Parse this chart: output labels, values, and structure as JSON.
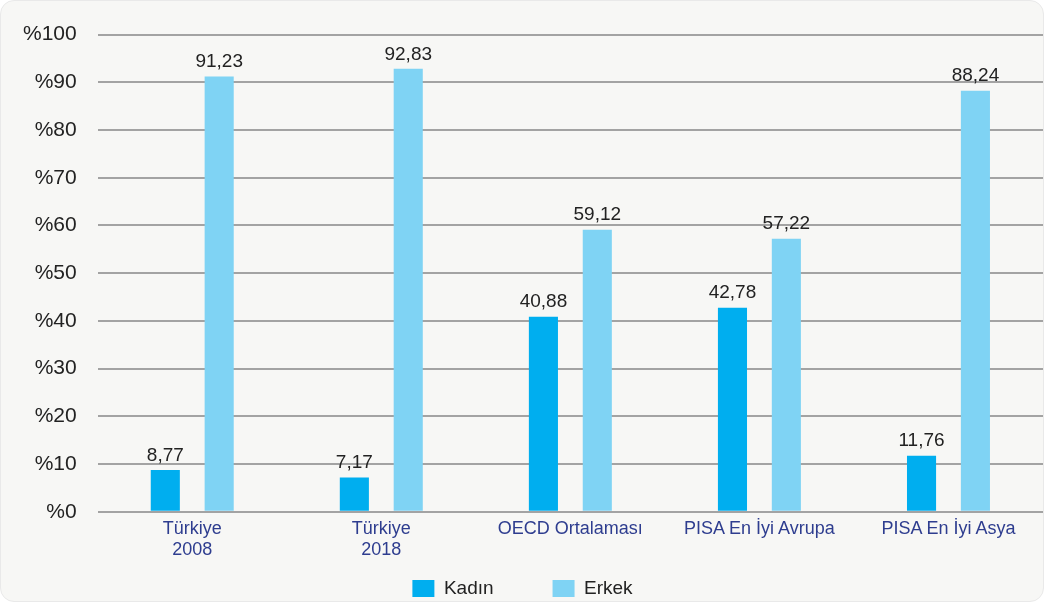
{
  "chart_data": {
    "type": "bar",
    "categories": [
      "Türkiye\n2008",
      "Türkiye\n2018",
      "OECD Ortalaması",
      "PISA En İyi Avrupa",
      "PISA En İyi Asya"
    ],
    "series": [
      {
        "name": "Kadın",
        "color": "#00aeef",
        "values": [
          8.77,
          7.17,
          40.88,
          42.78,
          11.76
        ],
        "value_labels": [
          "8,77",
          "7,17",
          "40,88",
          "42,78",
          "11,76"
        ]
      },
      {
        "name": "Erkek",
        "color": "#7fd3f4",
        "values": [
          91.23,
          92.83,
          59.12,
          57.22,
          88.24
        ],
        "value_labels": [
          "91,23",
          "92,83",
          "59,12",
          "57,22",
          "88,24"
        ]
      }
    ],
    "ylim": [
      0,
      100
    ],
    "yticks": [
      {
        "value": 0,
        "label": "%0"
      },
      {
        "value": 10,
        "label": "%10"
      },
      {
        "value": 20,
        "label": "%20"
      },
      {
        "value": 30,
        "label": "%30"
      },
      {
        "value": 40,
        "label": "%40"
      },
      {
        "value": 50,
        "label": "%50"
      },
      {
        "value": 60,
        "label": "%60"
      },
      {
        "value": 70,
        "label": "%70"
      },
      {
        "value": 80,
        "label": "%80"
      },
      {
        "value": 90,
        "label": "%90"
      },
      {
        "value": 100,
        "label": "%100"
      }
    ],
    "grid": "y",
    "legend": "bottom"
  }
}
